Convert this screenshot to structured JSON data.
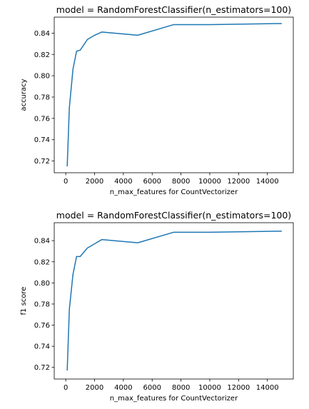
{
  "chart_data": [
    {
      "type": "line",
      "title": "model = RandomForestClassifier(n_estimators=100)",
      "xlabel": "n_max_features for CountVectorizer",
      "ylabel": "accuracy",
      "xlim": [
        -800,
        15800
      ],
      "ylim": [
        0.709,
        0.855
      ],
      "xticks": [
        0,
        2000,
        4000,
        6000,
        8000,
        10000,
        12000,
        14000
      ],
      "yticks": [
        0.72,
        0.74,
        0.76,
        0.78,
        0.8,
        0.82,
        0.84
      ],
      "ytick_labels": [
        "0.72",
        "0.74",
        "0.76",
        "0.78",
        "0.80",
        "0.82",
        "0.84"
      ],
      "grid": false,
      "color": "#1f77b4",
      "x": [
        100,
        250,
        500,
        750,
        1000,
        1500,
        2000,
        2500,
        5000,
        7500,
        10000,
        15000
      ],
      "y": [
        0.715,
        0.77,
        0.806,
        0.823,
        0.824,
        0.834,
        0.838,
        0.841,
        0.838,
        0.848,
        0.848,
        0.849
      ]
    },
    {
      "type": "line",
      "title": "model = RandomForestClassifier(n_estimators=100)",
      "xlabel": "n_max_features for CountVectorizer",
      "ylabel": "f1 score",
      "xlim": [
        -800,
        15800
      ],
      "ylim": [
        0.709,
        0.857
      ],
      "xticks": [
        0,
        2000,
        4000,
        6000,
        8000,
        10000,
        12000,
        14000
      ],
      "yticks": [
        0.72,
        0.74,
        0.76,
        0.78,
        0.8,
        0.82,
        0.84
      ],
      "ytick_labels": [
        "0.72",
        "0.74",
        "0.76",
        "0.78",
        "0.80",
        "0.82",
        "0.84"
      ],
      "grid": false,
      "color": "#1f77b4",
      "x": [
        100,
        250,
        500,
        750,
        1000,
        1500,
        2000,
        2500,
        5000,
        7500,
        10000,
        15000
      ],
      "y": [
        0.717,
        0.775,
        0.808,
        0.825,
        0.825,
        0.833,
        0.837,
        0.841,
        0.838,
        0.848,
        0.848,
        0.849
      ]
    }
  ]
}
